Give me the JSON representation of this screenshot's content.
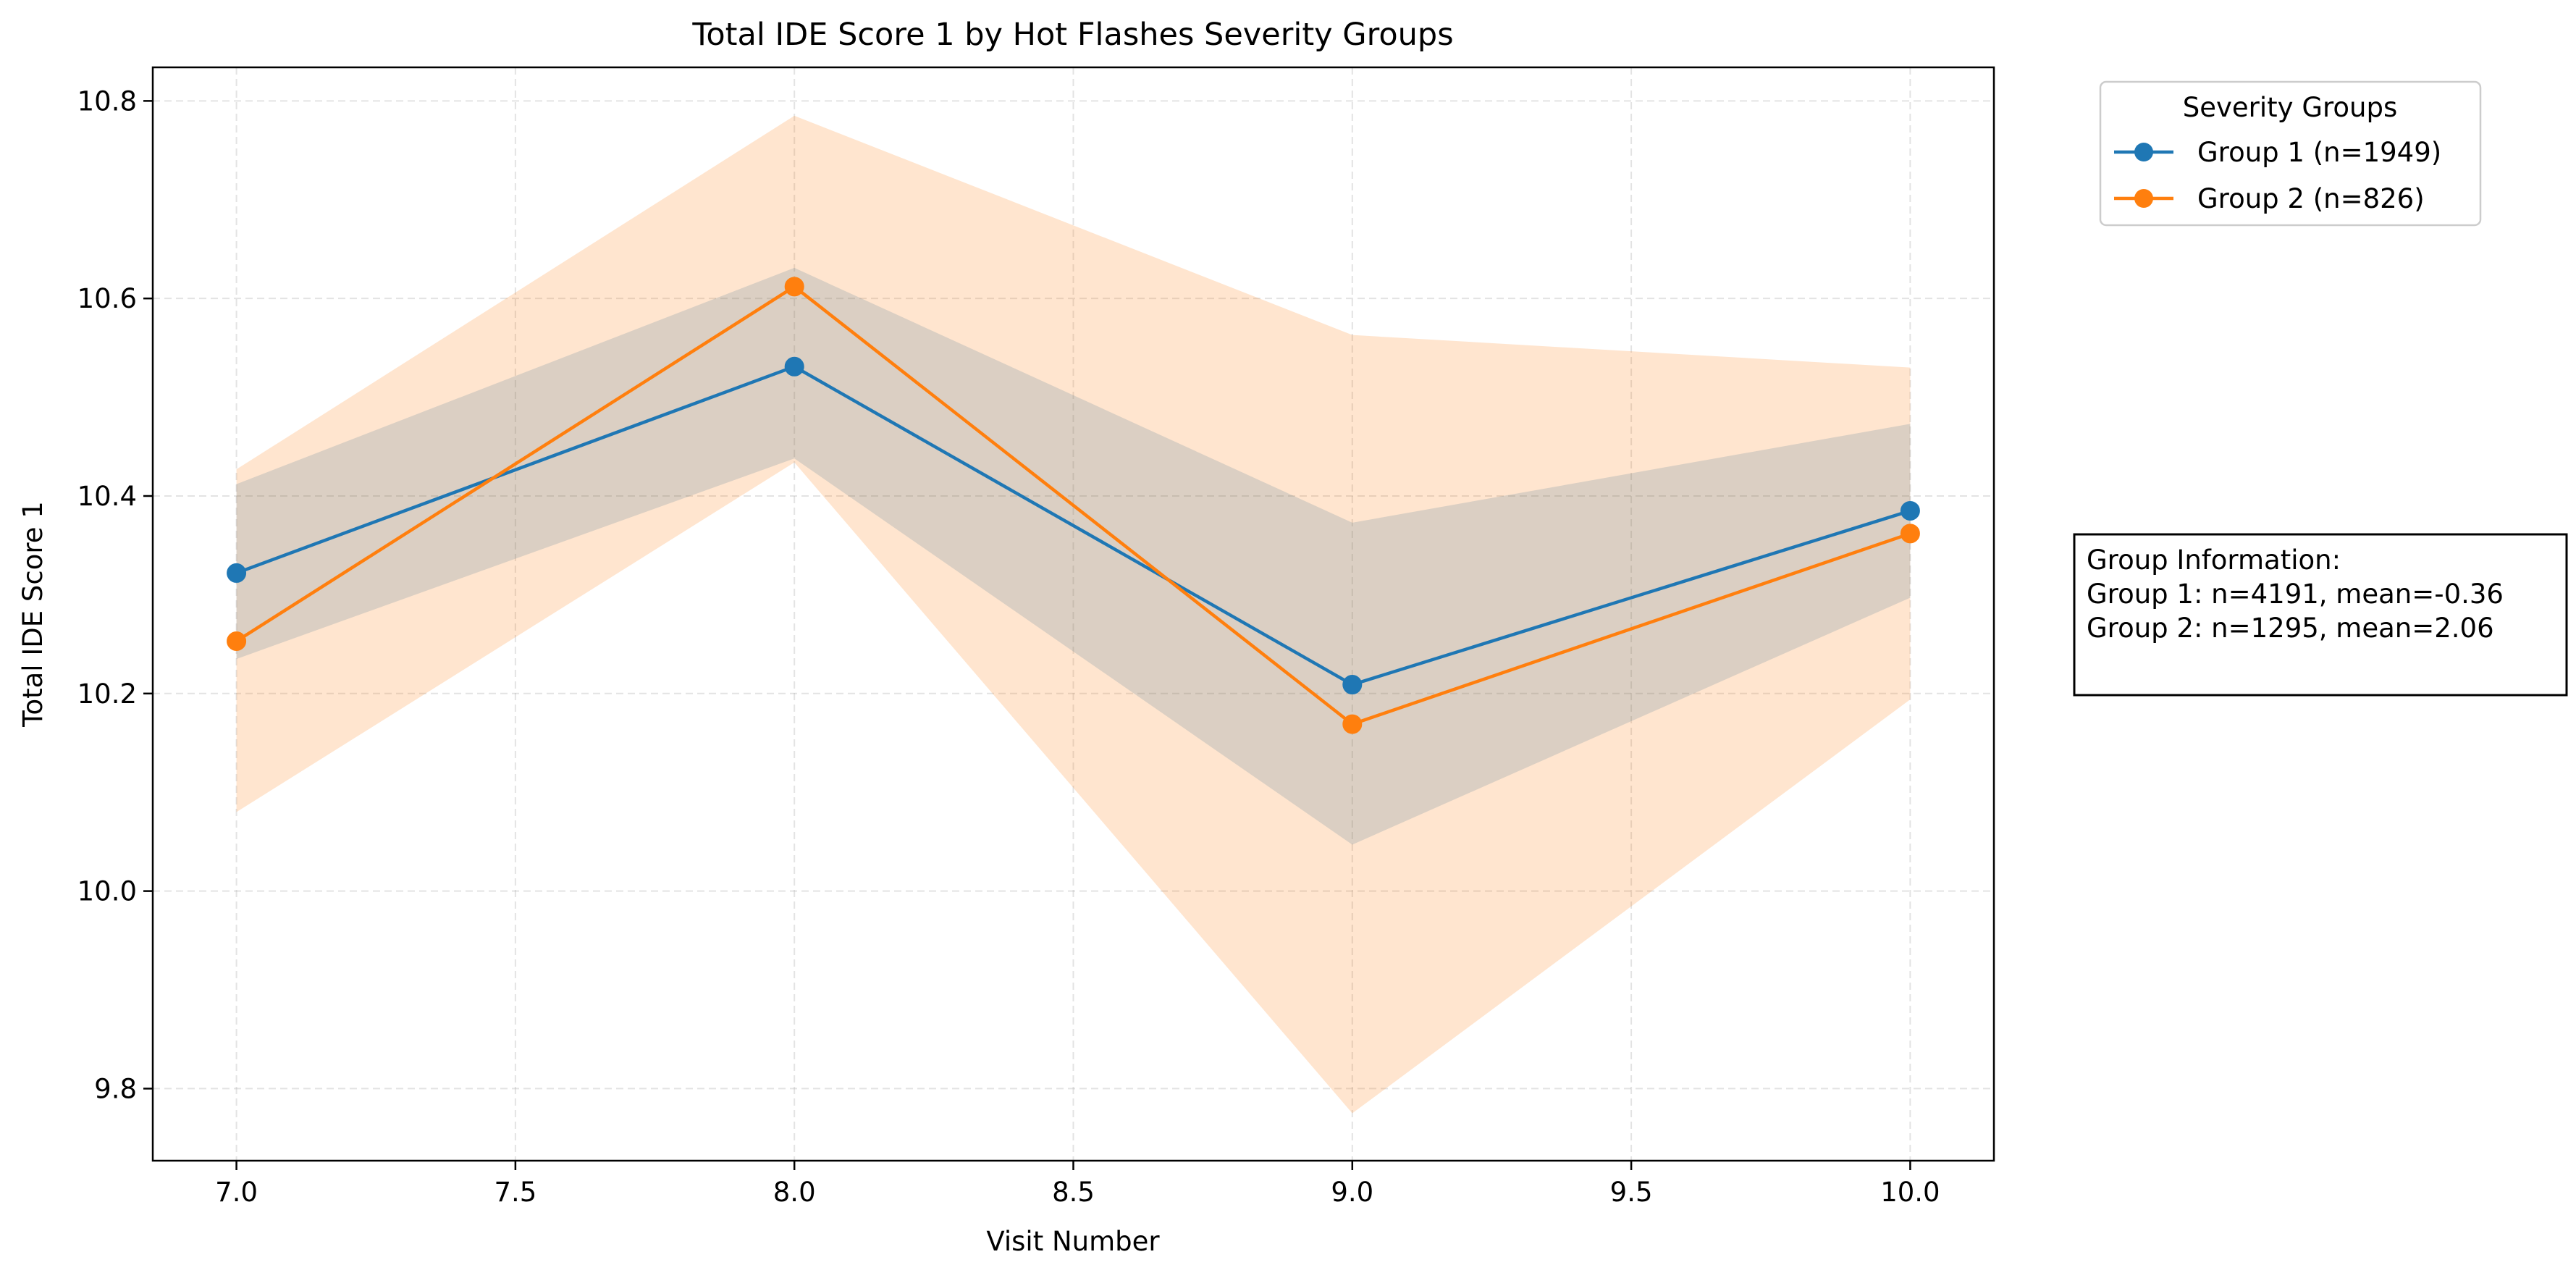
{
  "chart_data": {
    "type": "line",
    "title": "Total IDE Score 1 by Hot Flashes Severity Groups",
    "xlabel": "Visit Number",
    "ylabel": "Total IDE Score 1",
    "xlim": [
      6.85,
      10.15
    ],
    "ylim": [
      9.727,
      10.834
    ],
    "xticks": [
      7.0,
      7.5,
      8.0,
      8.5,
      9.0,
      9.5,
      10.0
    ],
    "xtick_labels": [
      "7.0",
      "7.5",
      "8.0",
      "8.5",
      "9.0",
      "9.5",
      "10.0"
    ],
    "yticks": [
      9.8,
      10.0,
      10.2,
      10.4,
      10.6,
      10.8
    ],
    "ytick_labels": [
      "9.8",
      "10.0",
      "10.2",
      "10.4",
      "10.6",
      "10.8"
    ],
    "grid": true,
    "legend": {
      "title": "Severity Groups",
      "placement": "outside top-right"
    },
    "x": [
      7.0,
      8.0,
      9.0,
      10.0
    ],
    "series": [
      {
        "name": "Group 1 (n=1949)",
        "color": "#1f77b4",
        "band_color": "#1f77b4",
        "values": [
          10.322,
          10.531,
          10.209,
          10.385
        ],
        "lower": [
          10.235,
          10.438,
          10.047,
          10.297
        ],
        "upper": [
          10.412,
          10.631,
          10.373,
          10.473
        ]
      },
      {
        "name": "Group 2 (n=826)",
        "color": "#ff7f0e",
        "band_color": "#ff7f0e",
        "values": [
          10.253,
          10.612,
          10.169,
          10.362
        ],
        "lower": [
          10.08,
          10.434,
          9.775,
          10.194
        ],
        "upper": [
          10.427,
          10.785,
          10.563,
          10.53
        ]
      }
    ],
    "annotation": {
      "lines": [
        "Group Information:",
        "Group 1: n=4191, mean=-0.36",
        "Group 2: n=1295, mean=2.06"
      ]
    }
  }
}
